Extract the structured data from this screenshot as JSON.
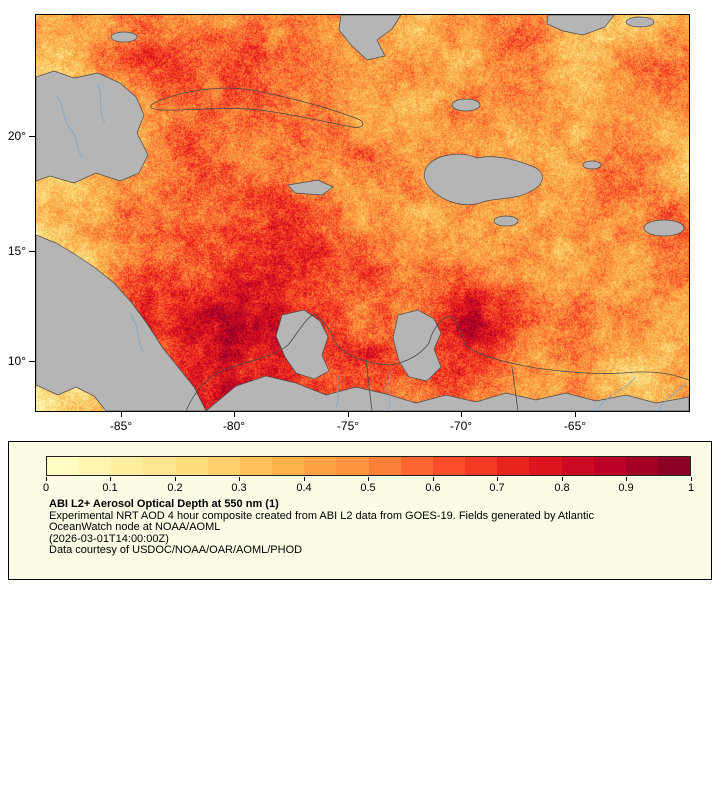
{
  "map": {
    "y_ticks": [
      "20°",
      "15°",
      "10°"
    ],
    "x_ticks": [
      "-85°",
      "-80°",
      "-75°",
      "-70°",
      "-65°"
    ]
  },
  "legend": {
    "title": "ABI L2+ Aerosol Optical Depth at 550 nm (1)",
    "description_line1": "Experimental NRT AOD 4 hour composite created from ABI L2 data from GOES-19. Fields generated by Atlantic",
    "description_line2": "OceanWatch node at NOAA/AOML",
    "timestamp": "(2026-03-01T14:00:00Z)",
    "credit": "Data courtesy of USDOC/NOAA/OAR/AOML/PHOD",
    "colorbar_ticks": [
      "0",
      "0.1",
      "0.2",
      "0.3",
      "0.4",
      "0.5",
      "0.6",
      "0.7",
      "0.8",
      "0.9",
      "1"
    ]
  },
  "colors": {
    "land_gray": "#b5b5b5",
    "coastline": "#4a4a4a",
    "river_blue": "#72a3cc",
    "legend_bg": "#fbfbe6",
    "frame": "#000000"
  },
  "chart_data": {
    "type": "heatmap",
    "title": "ABI L2+ Aerosol Optical Depth at 550 nm (1)",
    "variable": "Aerosol Optical Depth at 550 nm",
    "source_text": "ABI L2 data from GOES-19",
    "valid_time": "2026-03-01T14:00:00Z",
    "colorbar": {
      "min": 0,
      "max": 1,
      "tick_values": [
        0,
        0.1,
        0.2,
        0.3,
        0.4,
        0.5,
        0.6,
        0.7,
        0.8,
        0.9,
        1
      ],
      "palette": [
        "#ffffcc",
        "#ffeda0",
        "#fed976",
        "#feb24c",
        "#fd8d3c",
        "#fc4e2a",
        "#e31a1c",
        "#bd0026",
        "#800026"
      ],
      "segments": 20
    },
    "axes": {
      "x": {
        "tick_labels_deg": [
          -85,
          -80,
          -75,
          -70,
          -65
        ],
        "meaning": "longitude"
      },
      "y": {
        "tick_labels_deg": [
          20,
          15,
          10
        ],
        "meaning": "latitude"
      }
    },
    "map_extent_est": {
      "lon_min": -88.7,
      "lon_max": -60.0,
      "lat_min": 8.0,
      "lat_max": 25.3
    },
    "no_data_color": "#b5b5b5",
    "aod_grid_note": "approximate AOD values sampled on a 15x10 lon/lat grid read from the image, 0=left/top of map",
    "aod_grid": [
      [
        0.4,
        0.45,
        0.52,
        0.55,
        0.48,
        0.42,
        0.4,
        0.38,
        0.42,
        0.45,
        0.42,
        0.38,
        0.42,
        0.4,
        0.35
      ],
      [
        0.32,
        0.38,
        0.55,
        0.62,
        0.58,
        0.5,
        0.45,
        0.42,
        0.4,
        0.45,
        0.5,
        0.42,
        0.38,
        0.45,
        0.4
      ],
      [
        0.3,
        0.33,
        0.48,
        0.55,
        0.52,
        0.5,
        0.48,
        0.45,
        0.42,
        0.4,
        0.42,
        0.45,
        0.4,
        0.5,
        0.55
      ],
      [
        0.32,
        0.36,
        0.45,
        0.52,
        0.55,
        0.52,
        0.5,
        0.48,
        0.45,
        0.42,
        0.4,
        0.42,
        0.45,
        0.42,
        0.4
      ],
      [
        0.35,
        0.4,
        0.5,
        0.55,
        0.58,
        0.55,
        0.52,
        0.5,
        0.48,
        0.45,
        0.42,
        0.45,
        0.48,
        0.5,
        0.45
      ],
      [
        0.3,
        0.42,
        0.55,
        0.6,
        0.62,
        0.6,
        0.58,
        0.55,
        0.5,
        0.48,
        0.45,
        0.48,
        0.5,
        0.55,
        0.5
      ],
      [
        0.28,
        0.42,
        0.6,
        0.68,
        0.7,
        0.65,
        0.6,
        0.58,
        0.55,
        0.6,
        0.55,
        0.5,
        0.48,
        0.52,
        0.48
      ],
      [
        0.25,
        0.4,
        0.62,
        0.72,
        0.8,
        0.72,
        0.62,
        0.6,
        0.65,
        0.75,
        0.7,
        0.55,
        0.5,
        0.48,
        0.45
      ],
      [
        0.2,
        0.35,
        0.55,
        0.75,
        0.9,
        0.8,
        0.65,
        0.6,
        0.62,
        0.7,
        0.6,
        0.5,
        0.45,
        0.42,
        0.4
      ],
      [
        0.18,
        0.3,
        0.45,
        0.6,
        0.78,
        0.7,
        0.6,
        0.55,
        0.55,
        0.58,
        0.52,
        0.45,
        0.42,
        0.4,
        0.38
      ]
    ]
  }
}
